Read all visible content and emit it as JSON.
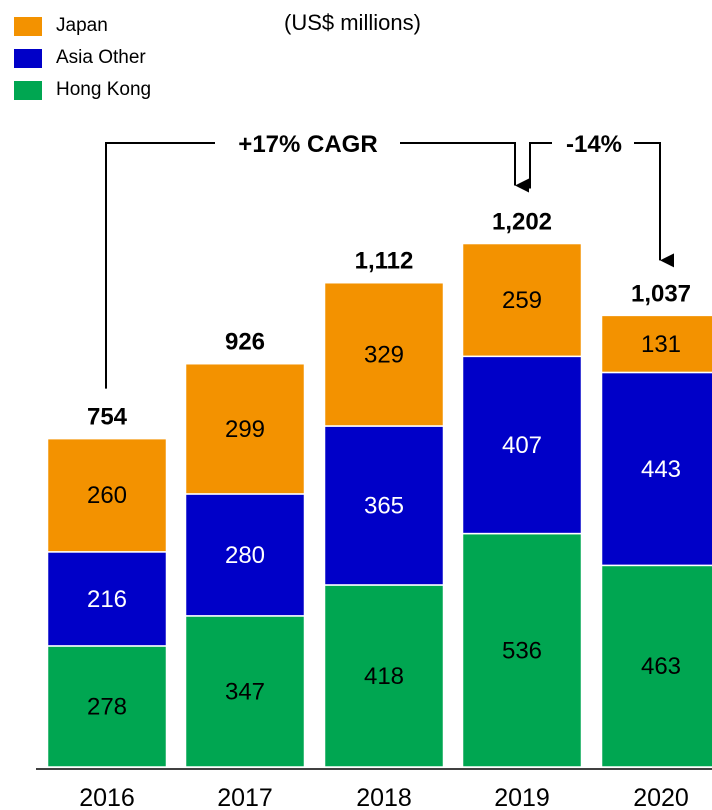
{
  "chart_data": {
    "type": "bar",
    "stacked": true,
    "units_label": "(US$ millions)",
    "categories": [
      "2016",
      "2017",
      "2018",
      "2019",
      "2020"
    ],
    "series": [
      {
        "name": "Hong Kong",
        "color": "#00a651",
        "values": [
          278,
          347,
          418,
          536,
          463
        ]
      },
      {
        "name": "Asia Other",
        "color": "#0000c8",
        "values": [
          216,
          280,
          365,
          407,
          443
        ]
      },
      {
        "name": "Japan",
        "color": "#f39200",
        "values": [
          260,
          299,
          329,
          259,
          131
        ]
      }
    ],
    "totals": [
      "754",
      "926",
      "1,112",
      "1,202",
      "1,037"
    ],
    "legend_order": [
      "Japan",
      "Asia Other",
      "Hong Kong"
    ],
    "legend_position": "top-left",
    "annotations": [
      {
        "text": "+17% CAGR",
        "from": "2016",
        "to": "2019"
      },
      {
        "text": "-14%",
        "from": "2019",
        "to": "2020"
      }
    ],
    "ylim": [
      0,
      1300
    ],
    "grid": false
  }
}
